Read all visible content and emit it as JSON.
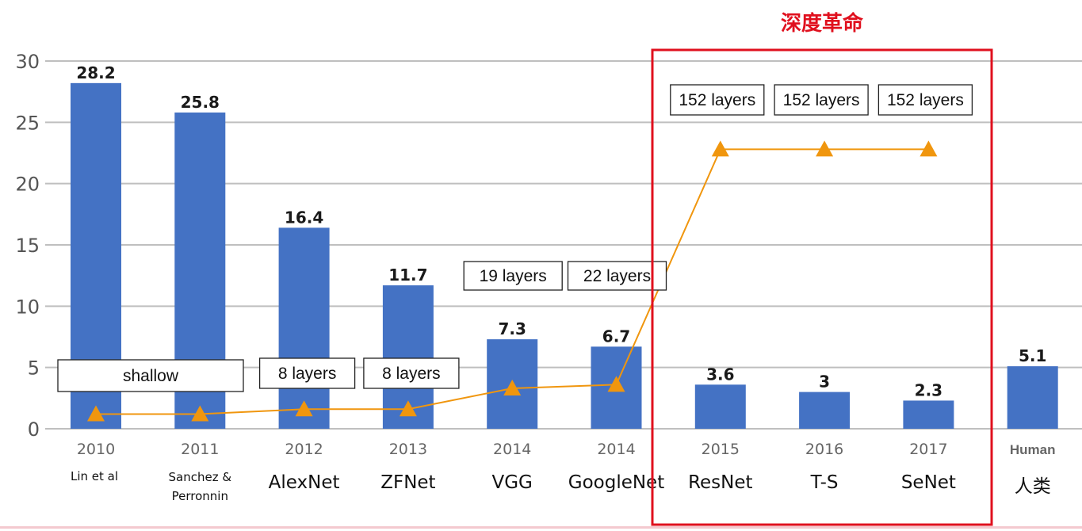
{
  "chart_data": {
    "type": "bar",
    "title": "",
    "xlabel": "",
    "ylabel": "",
    "ylim": [
      0,
      30
    ],
    "yticks": [
      "0",
      "5",
      "10",
      "15",
      "20",
      "25",
      "30"
    ],
    "grid": true,
    "categories": [
      "2010",
      "2011",
      "2012",
      "2013",
      "2014",
      "2014",
      "2015",
      "2016",
      "2017",
      "Human"
    ],
    "names": [
      "Lin et al",
      "Sanchez & Perronnin",
      "AlexNet",
      "ZFNet",
      "VGG",
      "GoogleNet",
      "ResNet",
      "T-S",
      "SeNet",
      "人类"
    ],
    "values": [
      28.2,
      25.8,
      16.4,
      11.7,
      7.3,
      6.7,
      3.6,
      3,
      2.3,
      5.1
    ],
    "value_labels": [
      "28.2",
      "25.8",
      "16.4",
      "11.7",
      "7.3",
      "6.7",
      "3.6",
      "3",
      "2.3",
      "5.1"
    ],
    "bar_color": "#4472c4",
    "depth_line": {
      "color": "#f0960e",
      "values": [
        1.2,
        1.2,
        1.6,
        1.6,
        3.3,
        3.6,
        22.8,
        22.8,
        22.8
      ]
    },
    "layer_annotations": [
      {
        "text": "shallow",
        "categories": [
          0,
          1
        ]
      },
      {
        "text": "8 layers",
        "categories": [
          2
        ]
      },
      {
        "text": "8 layers",
        "categories": [
          3
        ]
      },
      {
        "text": "19 layers",
        "categories": [
          4
        ]
      },
      {
        "text": "22 layers",
        "categories": [
          5
        ]
      },
      {
        "text": "152 layers",
        "categories": [
          6
        ]
      },
      {
        "text": "152 layers",
        "categories": [
          7
        ]
      },
      {
        "text": "152 layers",
        "categories": [
          8
        ]
      }
    ],
    "highlight": {
      "label": "深度革命",
      "color": "#e0101e",
      "categories": [
        6,
        7,
        8
      ]
    },
    "axis_color": "#bfbfbf"
  }
}
